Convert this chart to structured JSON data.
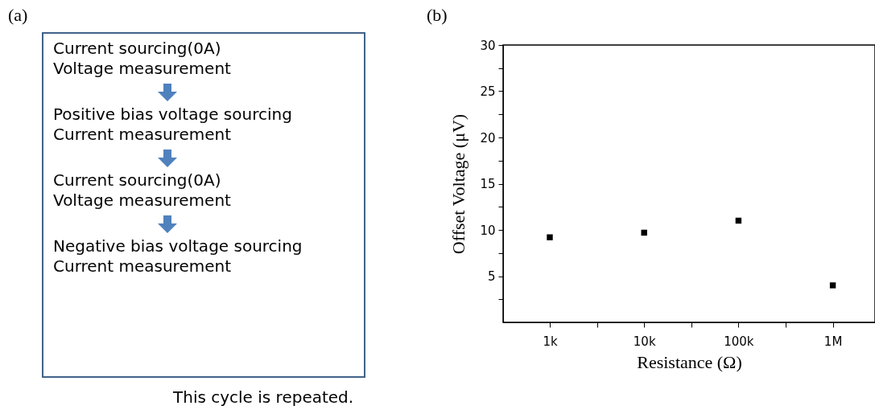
{
  "chart_data": [
    {
      "type": "other",
      "title": "(a)",
      "annotations": [
        "Current sourcing(0A)",
        "Voltage measurement",
        "Positive bias voltage sourcing",
        "Current measurement",
        "Current sourcing(0A)",
        "Voltage measurement",
        "Negative bias voltage sourcing",
        "Current measurement",
        "This cycle is repeated."
      ]
    },
    {
      "type": "scatter",
      "title": "(b)",
      "xlabel": "Resistance (Ω)",
      "ylabel": "Offset Voltage (μV)",
      "log": "x",
      "marker": "square",
      "x": [
        1000,
        10000,
        100000,
        1000000
      ],
      "series": [
        {
          "color": "#000000",
          "values": [
            9.2,
            9.7,
            11.0,
            4.0
          ]
        }
      ],
      "xlim": [
        320,
        2800000
      ],
      "xticks": [
        {
          "value": 1000,
          "label": "1k"
        },
        {
          "value": 3162,
          "label": null
        },
        {
          "value": 10000,
          "label": "10k"
        },
        {
          "value": 31623,
          "label": null
        },
        {
          "value": 100000,
          "label": "100k"
        },
        {
          "value": 316228,
          "label": null
        },
        {
          "value": 1000000,
          "label": "1M"
        }
      ],
      "ylim": [
        0,
        30
      ],
      "yticks": [
        {
          "value": 2.5,
          "label": null
        },
        5,
        {
          "value": 7.5,
          "label": null
        },
        10,
        {
          "value": 12.5,
          "label": null
        },
        15,
        {
          "value": 17.5,
          "label": null
        },
        20,
        {
          "value": 22.5,
          "label": null
        },
        25,
        {
          "value": 27.5,
          "label": null
        },
        30
      ],
      "grid": false,
      "legend": false
    }
  ]
}
